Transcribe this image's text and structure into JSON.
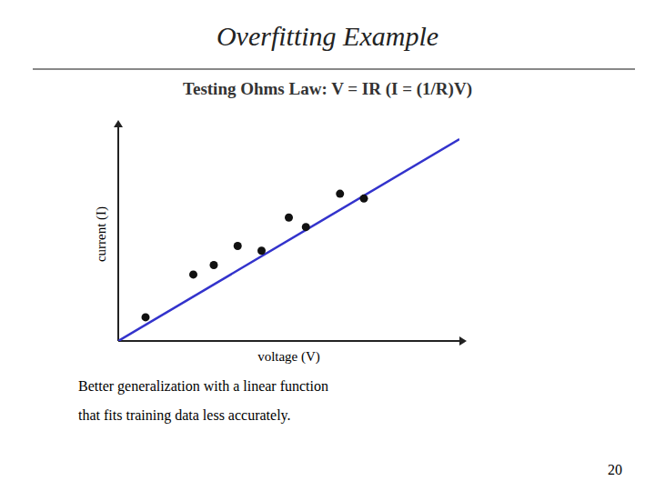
{
  "chart_data": {
    "type": "scatter",
    "title": "Overfitting Example",
    "subtitle": "Testing Ohms Law: V = IR   (I = (1/R)V)",
    "x_label": "voltage (V)",
    "y_label": "current (I)",
    "series": [
      {
        "type": "scatter",
        "color": "#111111",
        "x": [
          0.08,
          0.22,
          0.28,
          0.35,
          0.42,
          0.5,
          0.55,
          0.65,
          0.72
        ],
        "values": [
          0.1,
          0.28,
          0.32,
          0.4,
          0.38,
          0.52,
          0.48,
          0.62,
          0.6
        ]
      },
      {
        "type": "line",
        "color": "#3333CC",
        "x": [
          0.0,
          1.0
        ],
        "values": [
          0.0,
          0.85
        ]
      }
    ],
    "xlim": [
      0,
      1.0
    ],
    "ylim": [
      0,
      0.9
    ],
    "tick_labels": false,
    "grid": false,
    "annotations": [
      "Better generalization with a linear function",
      "that fits training data less accurately.",
      "20"
    ]
  }
}
